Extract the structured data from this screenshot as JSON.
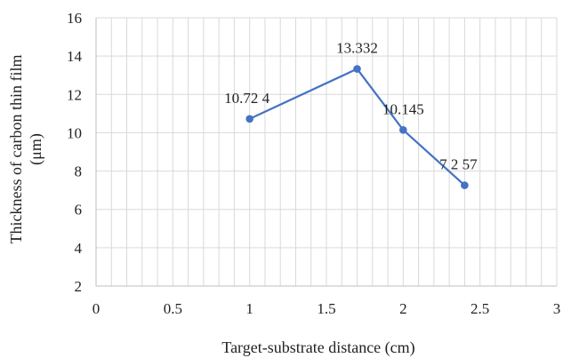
{
  "chart_data": {
    "type": "scatter",
    "title": "",
    "xlabel": "Target-substrate distance (cm)",
    "ylabel_lines": [
      "Thickness of carbon thin film",
      "(μm)"
    ],
    "xlim": [
      0,
      3
    ],
    "ylim": [
      2,
      16
    ],
    "x_ticks": [
      0,
      0.5,
      1,
      1.5,
      2,
      2.5,
      3
    ],
    "x_tick_labels": [
      "0",
      "0.5",
      "1",
      "1.5",
      "2",
      "2.5",
      "3"
    ],
    "y_ticks": [
      2,
      4,
      6,
      8,
      10,
      12,
      14,
      16
    ],
    "y_tick_labels": [
      "2",
      "4",
      "6",
      "8",
      "10",
      "12",
      "14",
      "16"
    ],
    "grid": true,
    "minor_x_grid_step": 0.1,
    "legend": "none",
    "series": [
      {
        "color": "#4472c4",
        "x": [
          1,
          1.7,
          2,
          2.4
        ],
        "y": [
          10.724,
          13.332,
          10.145,
          7.257
        ],
        "data_labels": [
          "10.72 4",
          "13.332",
          "10.145",
          "7 2 57"
        ]
      }
    ]
  }
}
